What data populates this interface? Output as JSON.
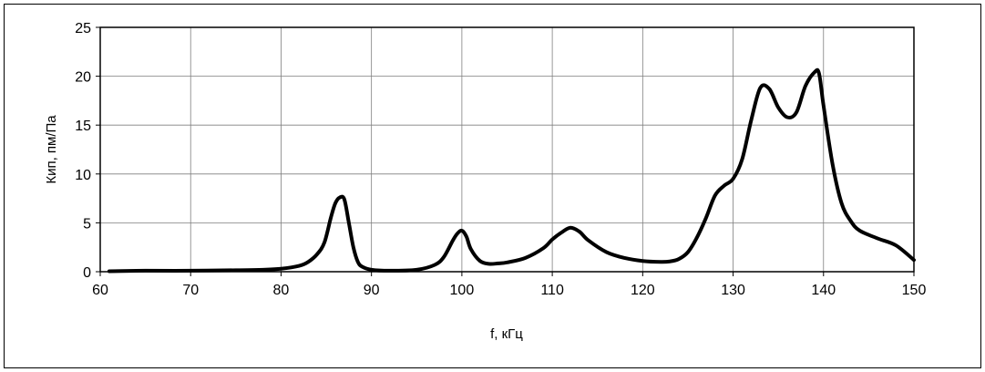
{
  "chart_data": {
    "type": "line",
    "title": "",
    "xlabel": "f, кГц",
    "ylabel": "Кип, пм/Па",
    "xlim": [
      60,
      150
    ],
    "ylim": [
      0,
      25
    ],
    "x_ticks": [
      60,
      70,
      80,
      90,
      100,
      110,
      120,
      130,
      140,
      150
    ],
    "y_ticks": [
      0,
      5,
      10,
      15,
      20,
      25
    ],
    "grid": true,
    "legend": "none",
    "series": [
      {
        "color": "#000000",
        "x": [
          61,
          65,
          70,
          75,
          78,
          80,
          82,
          83,
          84,
          84.8,
          85.5,
          86,
          86.5,
          87,
          87.5,
          88,
          88.5,
          89,
          90,
          92,
          95,
          97,
          98,
          99,
          99.5,
          100,
          100.5,
          101,
          102,
          103,
          104,
          105,
          107,
          109,
          110,
          111,
          112,
          113,
          114,
          116,
          118,
          120,
          122,
          123,
          124,
          125,
          126,
          127,
          128,
          129,
          130,
          131,
          132,
          133,
          134,
          135,
          136,
          137,
          138,
          139,
          139.5,
          140,
          141,
          142,
          143,
          144,
          146,
          148,
          150
        ],
        "y": [
          0.05,
          0.1,
          0.1,
          0.15,
          0.2,
          0.3,
          0.6,
          1.0,
          1.8,
          3.0,
          5.5,
          7.0,
          7.6,
          7.4,
          5.0,
          2.5,
          1.0,
          0.5,
          0.2,
          0.1,
          0.2,
          0.7,
          1.5,
          3.2,
          3.9,
          4.2,
          3.6,
          2.3,
          1.1,
          0.8,
          0.85,
          0.95,
          1.4,
          2.4,
          3.3,
          4.0,
          4.5,
          4.1,
          3.2,
          2.0,
          1.4,
          1.1,
          1.0,
          1.05,
          1.3,
          2.0,
          3.5,
          5.5,
          7.8,
          8.8,
          9.5,
          11.5,
          15.5,
          18.8,
          18.7,
          16.8,
          15.8,
          16.3,
          19.0,
          20.4,
          20.3,
          17.0,
          11.0,
          7.0,
          5.2,
          4.2,
          3.4,
          2.7,
          1.2
        ]
      }
    ]
  }
}
